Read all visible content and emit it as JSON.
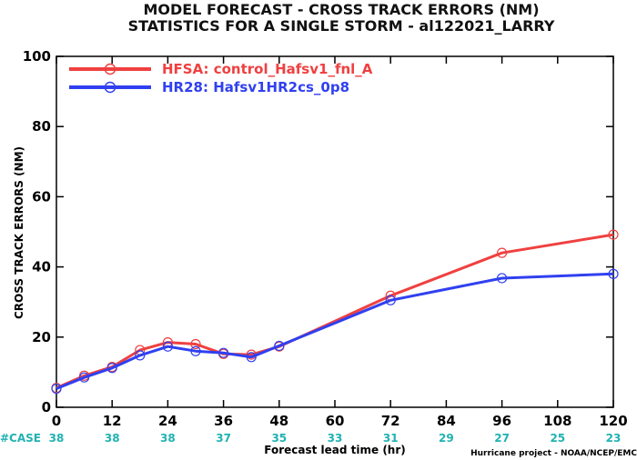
{
  "chart_data": {
    "type": "line",
    "title": "MODEL FORECAST - CROSS TRACK ERRORS (NM)",
    "subtitle": "STATISTICS FOR A SINGLE STORM - al122021_LARRY",
    "xlabel": "Forecast lead time (hr)",
    "ylabel": "CROSS TRACK ERRORS (NM)",
    "xlim": [
      0,
      120
    ],
    "ylim": [
      0,
      100
    ],
    "x_ticks": [
      0,
      12,
      24,
      36,
      48,
      60,
      72,
      84,
      96,
      108,
      120
    ],
    "y_ticks": [
      0,
      20,
      40,
      60,
      80,
      100
    ],
    "grid": false,
    "legend_position": "top-left",
    "case_label": "#CASE",
    "case_counts": [
      38,
      38,
      38,
      37,
      35,
      33,
      31,
      29,
      27,
      25,
      23
    ],
    "credit": "Hurricane project - NOAA/NCEP/EMC",
    "series": [
      {
        "name": "HFSA: control_Hafsv1_fnl_A",
        "color": "#f04040",
        "x": [
          0,
          6,
          12,
          18,
          24,
          30,
          36,
          42,
          48,
          72,
          96,
          120
        ],
        "values": [
          5.5,
          9.0,
          11.5,
          16.3,
          18.5,
          18.0,
          15.2,
          15.0,
          17.3,
          31.8,
          44.0,
          49.2
        ]
      },
      {
        "name": "HR28: Hafsv1HR2cs_0p8",
        "color": "#3040f0",
        "x": [
          0,
          6,
          12,
          18,
          24,
          30,
          36,
          42,
          48,
          72,
          96,
          120
        ],
        "values": [
          5.3,
          8.5,
          11.2,
          14.8,
          17.3,
          16.0,
          15.5,
          14.3,
          17.5,
          30.5,
          36.8,
          38.0
        ]
      }
    ]
  }
}
